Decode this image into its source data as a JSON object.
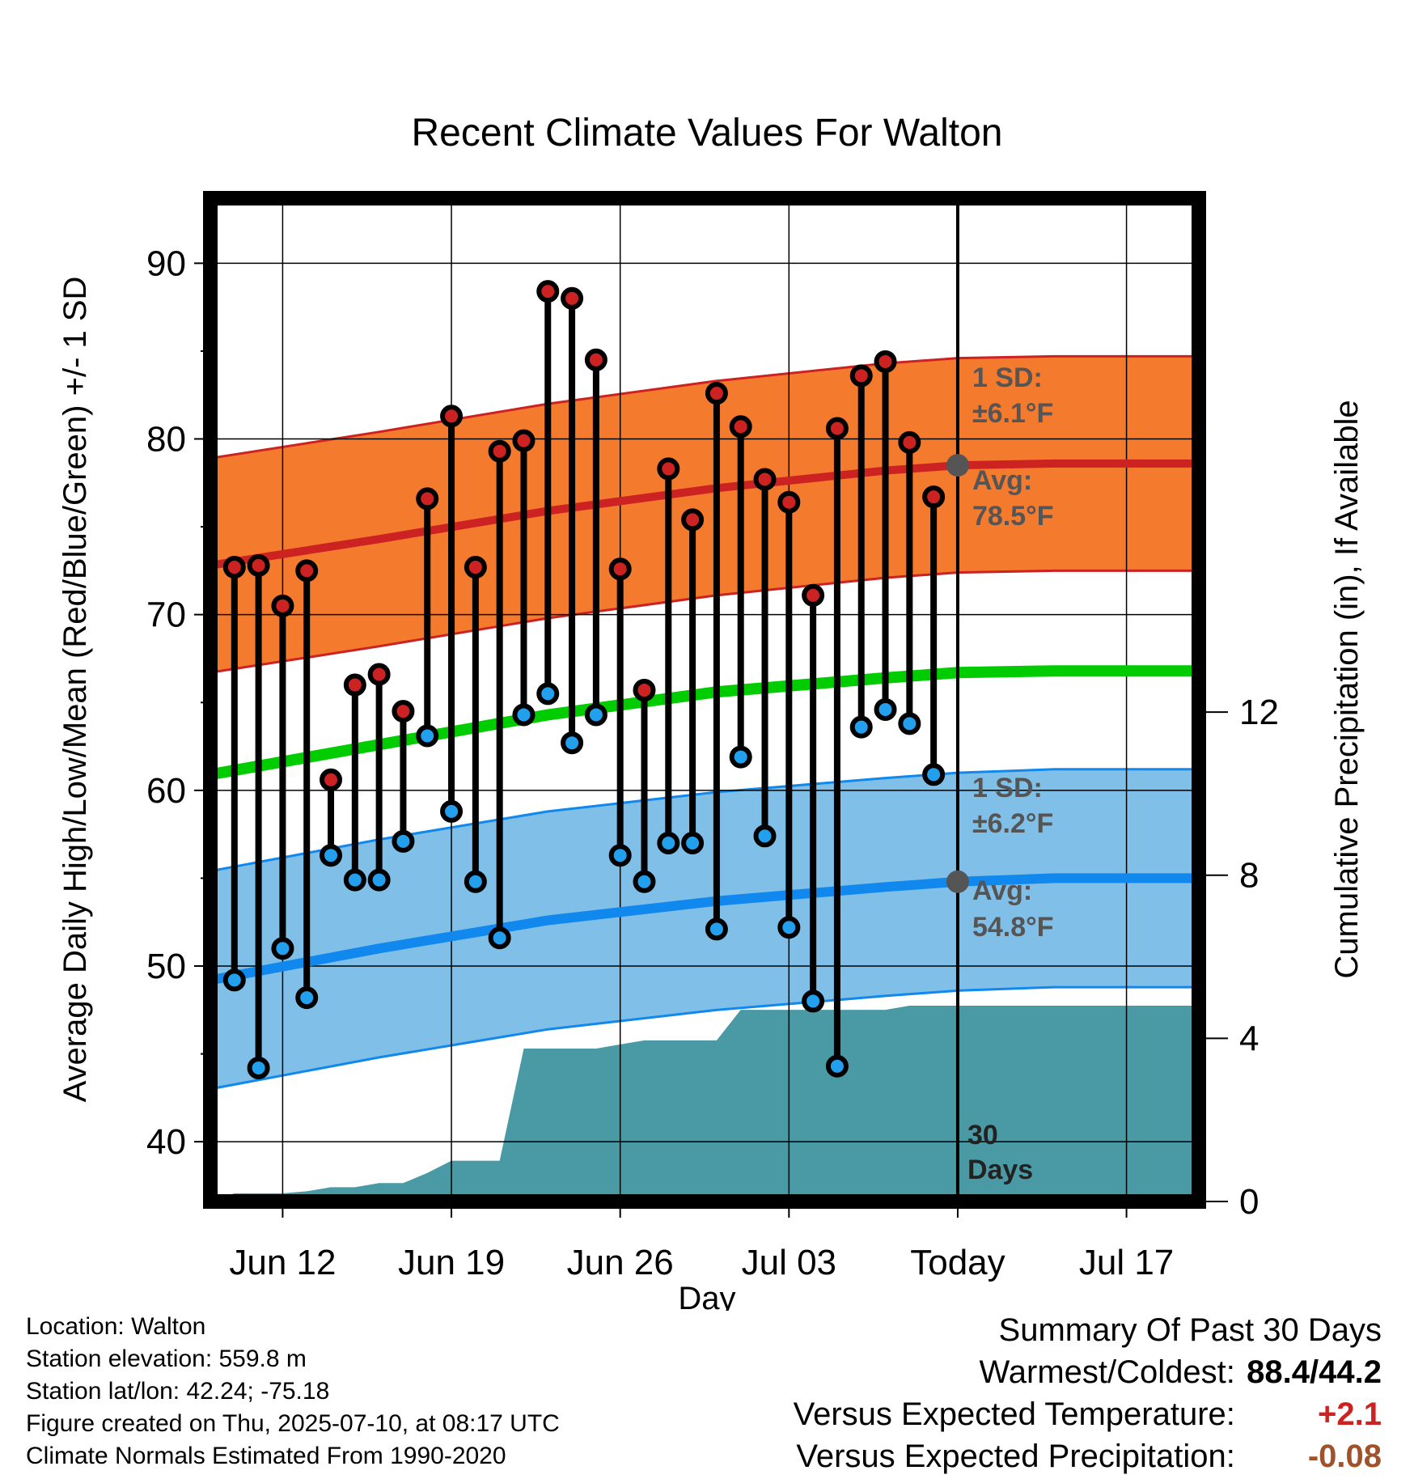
{
  "chart_data": {
    "type": "line",
    "title": "Recent Climate Values For Walton",
    "xlabel": "Day",
    "ylabel_left": "Average Daily High/Low/Mean (Red/Blue/Green) +/- 1 SD",
    "ylabel_right": "Cumulative Precipitation (in), If Available",
    "x_ticks": [
      "Jun 12",
      "Jun 19",
      "Jun 26",
      "Jul 03",
      "Today",
      "Jul 17"
    ],
    "y_ticks_left": [
      "40",
      "50",
      "60",
      "70",
      "80",
      "90"
    ],
    "y_ticks_right": [
      "0",
      "4",
      "8",
      "12"
    ],
    "ylim_left": [
      36.6,
      93.7
    ],
    "ylim_right": [
      0,
      24.6
    ],
    "xlim_days": [
      "Jun 09",
      "Jul 20"
    ],
    "today": "Jul 10",
    "dates": [
      "Jun 10",
      "Jun 11",
      "Jun 12",
      "Jun 13",
      "Jun 14",
      "Jun 15",
      "Jun 16",
      "Jun 17",
      "Jun 18",
      "Jun 19",
      "Jun 20",
      "Jun 21",
      "Jun 22",
      "Jun 23",
      "Jun 24",
      "Jun 25",
      "Jun 26",
      "Jun 27",
      "Jun 28",
      "Jun 29",
      "Jun 30",
      "Jul 01",
      "Jul 02",
      "Jul 03",
      "Jul 04",
      "Jul 05",
      "Jul 06",
      "Jul 07",
      "Jul 08",
      "Jul 09"
    ],
    "daily_high": [
      72.7,
      72.8,
      70.5,
      72.5,
      60.6,
      66.0,
      66.6,
      64.5,
      76.6,
      81.3,
      72.7,
      79.3,
      79.9,
      88.4,
      88.0,
      84.5,
      72.6,
      65.7,
      78.3,
      75.4,
      82.6,
      80.7,
      77.7,
      76.4,
      71.1,
      80.6,
      83.6,
      84.4,
      79.8,
      76.7
    ],
    "daily_low": [
      49.2,
      44.2,
      51.0,
      48.2,
      56.3,
      54.9,
      54.9,
      57.1,
      63.1,
      58.8,
      54.8,
      51.6,
      64.3,
      65.5,
      62.7,
      64.3,
      56.3,
      54.8,
      57.0,
      57.0,
      52.1,
      61.9,
      57.4,
      52.2,
      48.0,
      44.3,
      63.6,
      64.6,
      63.8,
      60.9
    ],
    "normal_high": {
      "x": [
        "Jun 09",
        "Jun 16",
        "Jun 23",
        "Jun 30",
        "Jul 07",
        "Jul 10",
        "Jul 14",
        "Jul 20"
      ],
      "values": [
        72.8,
        74.3,
        75.9,
        77.2,
        78.2,
        78.5,
        78.6,
        78.6
      ],
      "sd": 6.1,
      "color": "#cc2222",
      "band_color": "#f47a2e"
    },
    "normal_low": {
      "x": [
        "Jun 09",
        "Jun 16",
        "Jun 23",
        "Jun 30",
        "Jul 07",
        "Jul 10",
        "Jul 14",
        "Jul 20"
      ],
      "values": [
        49.2,
        51.0,
        52.6,
        53.7,
        54.5,
        54.8,
        55.0,
        55.0
      ],
      "sd": 6.2,
      "color": "#1188ee",
      "band_color": "#80c0e8"
    },
    "normal_mean": {
      "x": [
        "Jun 09",
        "Jun 16",
        "Jun 23",
        "Jun 30",
        "Jul 07",
        "Jul 10",
        "Jul 14",
        "Jul 20"
      ],
      "values": [
        60.9,
        62.6,
        64.3,
        65.6,
        66.4,
        66.7,
        66.8,
        66.8
      ],
      "color": "#00cc00"
    },
    "cumulative_precip": {
      "x": [
        "Jun 09",
        "Jun 10",
        "Jun 12",
        "Jun 13",
        "Jun 14",
        "Jun 15",
        "Jun 16",
        "Jun 17",
        "Jun 18",
        "Jun 19",
        "Jun 20",
        "Jun 21",
        "Jun 22",
        "Jun 23",
        "Jun 24",
        "Jun 25",
        "Jun 26",
        "Jun 27",
        "Jun 28",
        "Jun 29",
        "Jun 30",
        "Jul 01",
        "Jul 02",
        "Jul 03",
        "Jul 04",
        "Jul 05",
        "Jul 06",
        "Jul 07",
        "Jul 08",
        "Jul 09",
        "Jul 20"
      ],
      "values": [
        0.0,
        0.2,
        0.2,
        0.25,
        0.35,
        0.35,
        0.45,
        0.45,
        0.7,
        1.0,
        1.0,
        1.0,
        3.75,
        3.75,
        3.75,
        3.75,
        3.85,
        3.95,
        3.95,
        3.95,
        3.95,
        4.7,
        4.7,
        4.7,
        4.7,
        4.7,
        4.7,
        4.7,
        4.8,
        4.8,
        4.8
      ],
      "color": "#4a9aa5"
    },
    "annotations": {
      "high_sd": [
        "1 SD:",
        "±6.1°F"
      ],
      "high_avg": [
        "Avg:",
        "78.5°F"
      ],
      "low_sd": [
        "1 SD:",
        "±6.2°F"
      ],
      "low_avg": [
        "Avg:",
        "54.8°F"
      ],
      "days": [
        "30",
        "Days"
      ]
    },
    "high_marker_color": "#cc2222",
    "low_marker_color": "#22a0ee"
  },
  "station_info": [
    "Location: Walton",
    "Station elevation: 559.8 m",
    "Station lat/lon: 42.24; -75.18",
    "Figure created on Thu, 2025-07-10, at 08:17 UTC",
    "Climate Normals Estimated From 1990-2020"
  ],
  "summary": {
    "heading": "Summary Of Past 30 Days",
    "warmest_coldest_label": "Warmest/Coldest:",
    "warmest_coldest_value": "88.4/44.2",
    "temp_label": "Versus Expected Temperature:",
    "temp_value": "+2.1",
    "temp_color": "#cc2222",
    "precip_label": "Versus Expected Precipitation:",
    "precip_value": "-0.08",
    "precip_color": "#a0522d"
  }
}
